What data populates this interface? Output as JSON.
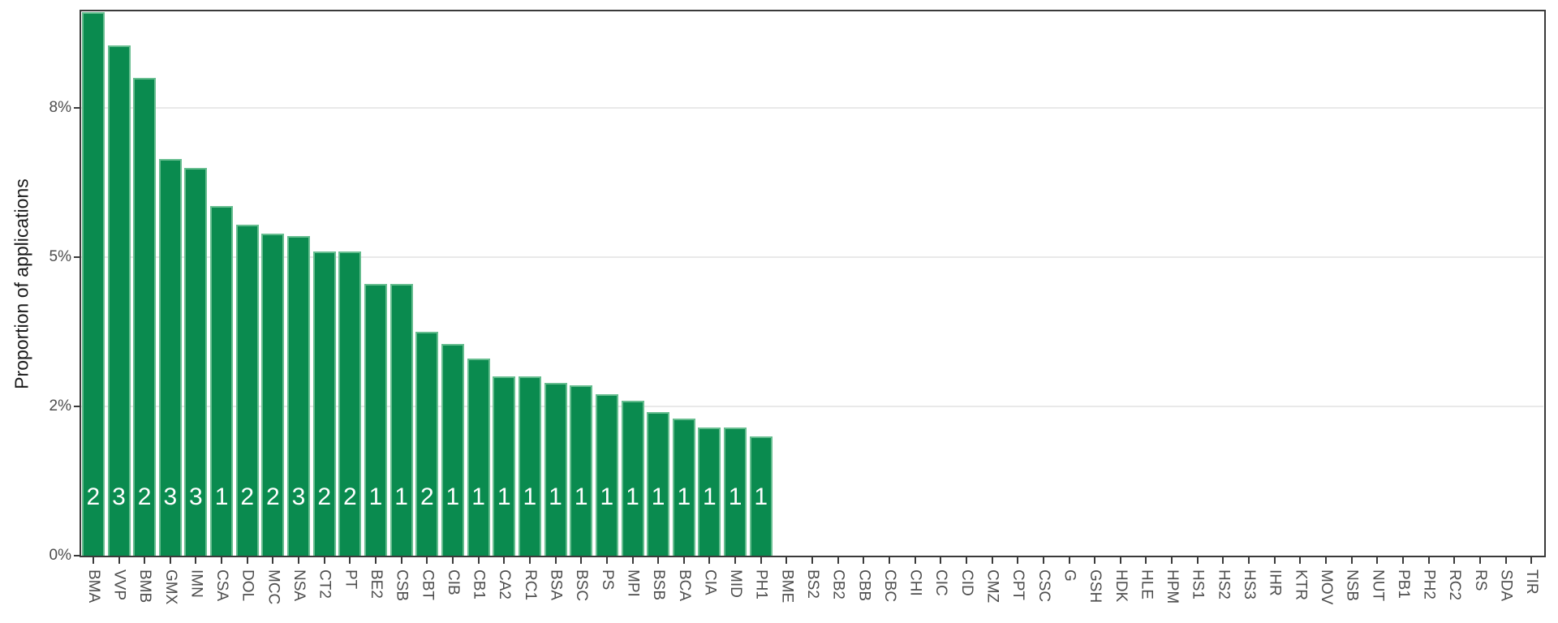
{
  "chart_data": {
    "type": "bar",
    "title": "",
    "xlabel": "",
    "ylabel": "Proportion of applications",
    "legend": "none",
    "grid": "horizontal-major-only",
    "ylim": [
      0,
      9.12
    ],
    "y_ticks": [
      {
        "value": 0,
        "label": "0%"
      },
      {
        "value": 2.5,
        "label": "2%"
      },
      {
        "value": 5,
        "label": "5%"
      },
      {
        "value": 7.5,
        "label": "8%"
      }
    ],
    "categories": [
      "BMA",
      "VVP",
      "BMB",
      "GMX",
      "IMN",
      "CSA",
      "DOL",
      "MCC",
      "NSA",
      "CT2",
      "PT",
      "BE2",
      "CSB",
      "CBT",
      "CIB",
      "CB1",
      "CA2",
      "RC1",
      "BSA",
      "BSC",
      "PS",
      "MPI",
      "BSB",
      "BCA",
      "CIA",
      "MID",
      "PH1",
      "BME",
      "BS2",
      "CB2",
      "CBB",
      "CBC",
      "CHI",
      "CIC",
      "CID",
      "CMZ",
      "CPT",
      "CSC",
      "G",
      "GSH",
      "HDK",
      "HLE",
      "HPM",
      "HS1",
      "HS2",
      "HS3",
      "IHR",
      "KTR",
      "MOV",
      "NSB",
      "NUT",
      "PB1",
      "PH2",
      "RC2",
      "RS",
      "SDA",
      "TIR"
    ],
    "values_percent": [
      9.1,
      8.55,
      8.0,
      6.65,
      6.5,
      5.85,
      5.55,
      5.4,
      5.35,
      5.1,
      5.1,
      4.55,
      4.55,
      3.75,
      3.55,
      3.3,
      3.0,
      3.0,
      2.9,
      2.85,
      2.7,
      2.6,
      2.4,
      2.3,
      2.15,
      2.15,
      2.0,
      0,
      0,
      0,
      0,
      0,
      0,
      0,
      0,
      0,
      0,
      0,
      0,
      0,
      0,
      0,
      0,
      0,
      0,
      0,
      0,
      0,
      0,
      0,
      0,
      0,
      0,
      0,
      0,
      0,
      0
    ],
    "bar_count_labels": [
      2,
      3,
      2,
      3,
      3,
      1,
      2,
      2,
      3,
      2,
      2,
      1,
      1,
      2,
      1,
      1,
      1,
      1,
      1,
      1,
      1,
      1,
      1,
      1,
      1,
      1,
      1,
      null,
      null,
      null,
      null,
      null,
      null,
      null,
      null,
      null,
      null,
      null,
      null,
      null,
      null,
      null,
      null,
      null,
      null,
      null,
      null,
      null,
      null,
      null,
      null,
      null,
      null,
      null,
      null,
      null,
      null
    ],
    "colors": {
      "bar_fill": "#0a8b4f",
      "bar_edge": "#66bd8f",
      "count_text": "#ffffff",
      "gridline": "#e9e9e9",
      "panel_border": "#3a3a3a",
      "axis_text": "#4d4d4d",
      "axis_title_text": "#1a1a1a",
      "background": "#ffffff"
    }
  }
}
